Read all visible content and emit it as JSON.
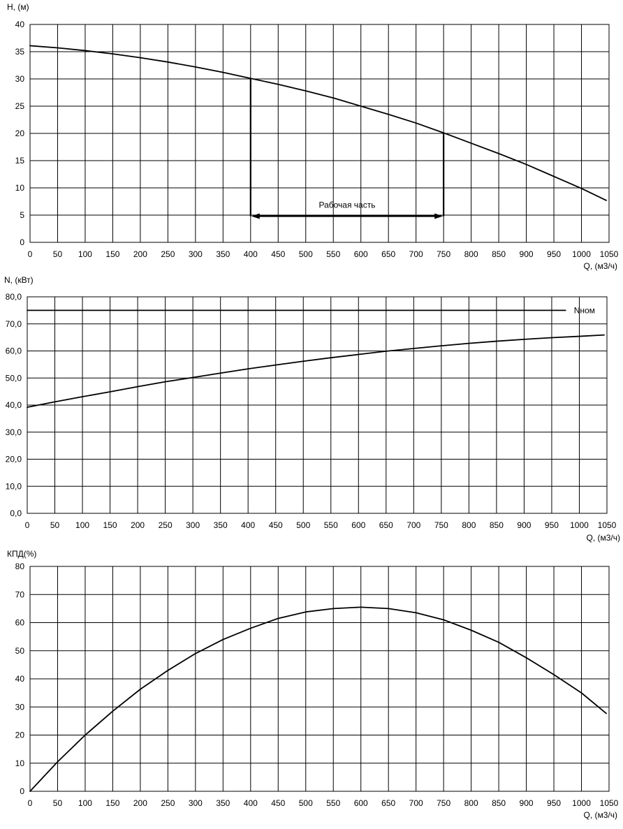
{
  "chart_data": [
    {
      "type": "line",
      "ylabel": "H, (м)",
      "xlabel": "Q, (м3/ч)",
      "xlim": [
        0,
        1050
      ],
      "ylim": [
        0,
        40
      ],
      "x_ticks": [
        0,
        50,
        100,
        150,
        200,
        250,
        300,
        350,
        400,
        450,
        500,
        550,
        600,
        650,
        700,
        750,
        800,
        850,
        900,
        950,
        1000,
        1050
      ],
      "y_ticks": [
        0,
        5,
        10,
        15,
        20,
        25,
        30,
        35,
        40
      ],
      "y_tick_labels": [
        "0",
        "5",
        "10",
        "15",
        "20",
        "25",
        "30",
        "35",
        "40"
      ],
      "grid": true,
      "series": [
        {
          "name": "",
          "x": [
            0,
            50,
            100,
            150,
            200,
            250,
            300,
            350,
            400,
            450,
            500,
            550,
            600,
            650,
            700,
            750,
            800,
            850,
            900,
            950,
            1000,
            1045
          ],
          "y": [
            36.1,
            35.7,
            35.2,
            34.6,
            33.9,
            33.1,
            32.2,
            31.2,
            30.1,
            29.0,
            27.8,
            26.5,
            25.0,
            23.5,
            21.9,
            20.1,
            18.2,
            16.3,
            14.3,
            12.1,
            9.9,
            7.7
          ]
        }
      ],
      "annotations": {
        "working_range": {
          "label": "Рабочая часть",
          "q_start": 400,
          "q_end": 750,
          "h_start": 30.1,
          "h_end": 20.1,
          "arrow_h": 4.8
        }
      }
    },
    {
      "type": "line",
      "ylabel": "N, (кВт)",
      "xlabel": "Q, (м3/ч)",
      "xlim": [
        0,
        1050
      ],
      "ylim": [
        0,
        80
      ],
      "x_ticks": [
        0,
        50,
        100,
        150,
        200,
        250,
        300,
        350,
        400,
        450,
        500,
        550,
        600,
        650,
        700,
        750,
        800,
        850,
        900,
        950,
        1000,
        1050
      ],
      "y_ticks": [
        0,
        10,
        20,
        30,
        40,
        50,
        60,
        70,
        80
      ],
      "y_tick_labels": [
        "0,0",
        "10,0",
        "20,0",
        "30,0",
        "40,0",
        "50,0",
        "60,0",
        "70,0",
        "80,0"
      ],
      "grid": true,
      "series": [
        {
          "name": "",
          "x": [
            0,
            50,
            100,
            150,
            200,
            250,
            300,
            350,
            400,
            450,
            500,
            550,
            600,
            650,
            700,
            750,
            800,
            850,
            900,
            950,
            1000,
            1045
          ],
          "y": [
            39.2,
            41.2,
            43.1,
            44.9,
            46.8,
            48.6,
            50.2,
            51.8,
            53.4,
            54.8,
            56.2,
            57.5,
            58.7,
            59.9,
            60.9,
            61.9,
            62.8,
            63.6,
            64.3,
            64.9,
            65.4,
            65.9
          ]
        },
        {
          "name": "Nном",
          "x": [
            0,
            975
          ],
          "y": [
            75,
            75
          ]
        }
      ]
    },
    {
      "type": "line",
      "ylabel": "КПД(%)",
      "xlabel": "Q, (м3/ч)",
      "xlim": [
        0,
        1050
      ],
      "ylim": [
        0,
        80
      ],
      "x_ticks": [
        0,
        50,
        100,
        150,
        200,
        250,
        300,
        350,
        400,
        450,
        500,
        550,
        600,
        650,
        700,
        750,
        800,
        850,
        900,
        950,
        1000,
        1050
      ],
      "y_ticks": [
        0,
        10,
        20,
        30,
        40,
        50,
        60,
        70,
        80
      ],
      "y_tick_labels": [
        "0",
        "10",
        "20",
        "30",
        "40",
        "50",
        "60",
        "70",
        "80"
      ],
      "grid": true,
      "series": [
        {
          "name": "",
          "x": [
            0,
            50,
            100,
            150,
            200,
            250,
            300,
            350,
            400,
            450,
            500,
            550,
            600,
            650,
            700,
            750,
            800,
            850,
            900,
            950,
            1000,
            1045
          ],
          "y": [
            0,
            10.5,
            20.0,
            28.5,
            36.3,
            43.0,
            49.0,
            54.0,
            58.0,
            61.5,
            63.8,
            65.0,
            65.5,
            65.0,
            63.5,
            61.0,
            57.3,
            53.0,
            47.5,
            41.5,
            35.0,
            27.7
          ]
        }
      ]
    }
  ]
}
